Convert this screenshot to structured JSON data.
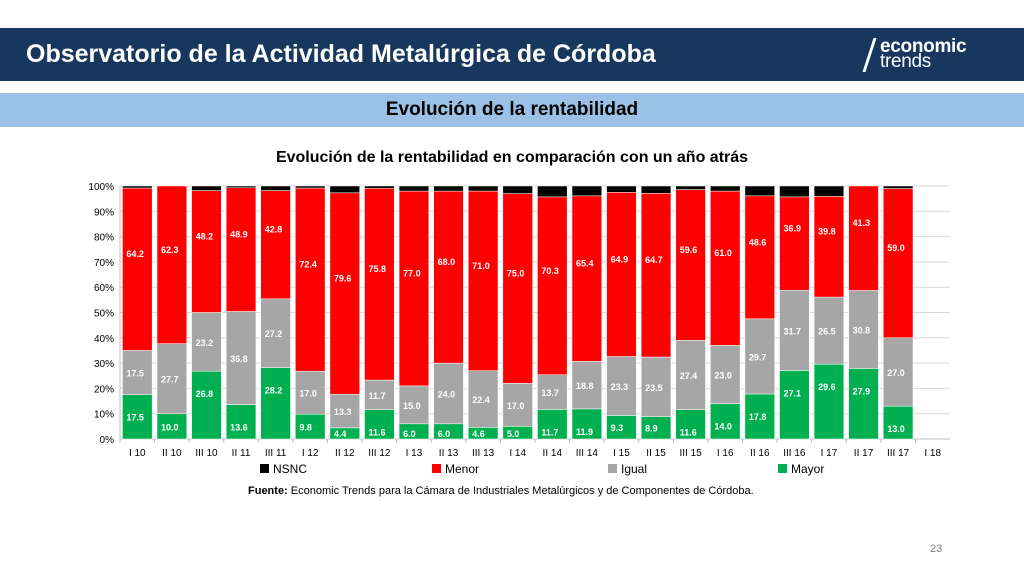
{
  "header": {
    "title": "Observatorio de la Actividad Metalúrgica de Córdoba",
    "logo_line1": "economic",
    "logo_line2": "trends"
  },
  "section": {
    "title": "Evolución de la rentabilidad"
  },
  "footer": {
    "source_label": "Fuente:",
    "source_text": " Economic Trends para la Cámara de Industriales Metalúrgicos y de Componentes de Córdoba.",
    "page_number": "23"
  },
  "chart_data": {
    "type": "bar",
    "stacked": true,
    "percent_stacked": true,
    "title": "Evolución de la rentabilidad en comparación con un año atrás",
    "categories": [
      "I 10",
      "II 10",
      "III 10",
      "II 11",
      "III 11",
      "I 12",
      "II 12",
      "III 12",
      "I 13",
      "II 13",
      "III 13",
      "I 14",
      "II 14",
      "III 14",
      "I 15",
      "II 15",
      "III 15",
      "I 16",
      "II 16",
      "III 16",
      "I 17",
      "II 17",
      "III 17",
      "I 18"
    ],
    "series": [
      {
        "name": "Mayor",
        "color": "#00b050",
        "values": [
          17.5,
          10.0,
          26.8,
          13.6,
          28.2,
          9.8,
          4.4,
          11.6,
          6.0,
          6.0,
          4.6,
          5.0,
          11.7,
          11.9,
          9.3,
          8.9,
          11.6,
          14.0,
          17.8,
          27.1,
          29.6,
          27.9,
          13.0,
          null
        ]
      },
      {
        "name": "Igual",
        "color": "#a6a6a6",
        "values": [
          17.5,
          27.7,
          23.2,
          36.8,
          27.2,
          17.0,
          13.3,
          11.7,
          15.0,
          24.0,
          22.4,
          17.0,
          13.7,
          18.8,
          23.3,
          23.5,
          27.4,
          23.0,
          29.7,
          31.7,
          26.5,
          30.8,
          27.0,
          null
        ]
      },
      {
        "name": "Menor",
        "color": "#ff0000",
        "values": [
          64.2,
          62.3,
          48.2,
          48.9,
          42.8,
          72.4,
          79.6,
          75.8,
          77.0,
          68.0,
          71.0,
          75.0,
          70.3,
          65.4,
          64.9,
          64.7,
          59.6,
          61.0,
          48.6,
          36.9,
          39.8,
          41.3,
          59.0,
          null
        ]
      },
      {
        "name": "NSNC",
        "color": "#000000",
        "values": [
          0.8,
          0.0,
          1.8,
          0.7,
          1.8,
          0.8,
          2.7,
          0.9,
          2.0,
          2.0,
          2.0,
          3.0,
          4.3,
          3.9,
          2.5,
          2.9,
          1.4,
          2.0,
          3.9,
          4.3,
          4.1,
          0.0,
          1.0,
          null
        ]
      }
    ],
    "y_ticks": [
      "0%",
      "10%",
      "20%",
      "30%",
      "40%",
      "50%",
      "60%",
      "70%",
      "80%",
      "90%",
      "100%"
    ],
    "ylim": [
      0,
      100
    ],
    "grid": true,
    "legend": {
      "position": "bottom",
      "order": [
        "NSNC",
        "Menor",
        "Igual",
        "Mayor"
      ]
    }
  }
}
